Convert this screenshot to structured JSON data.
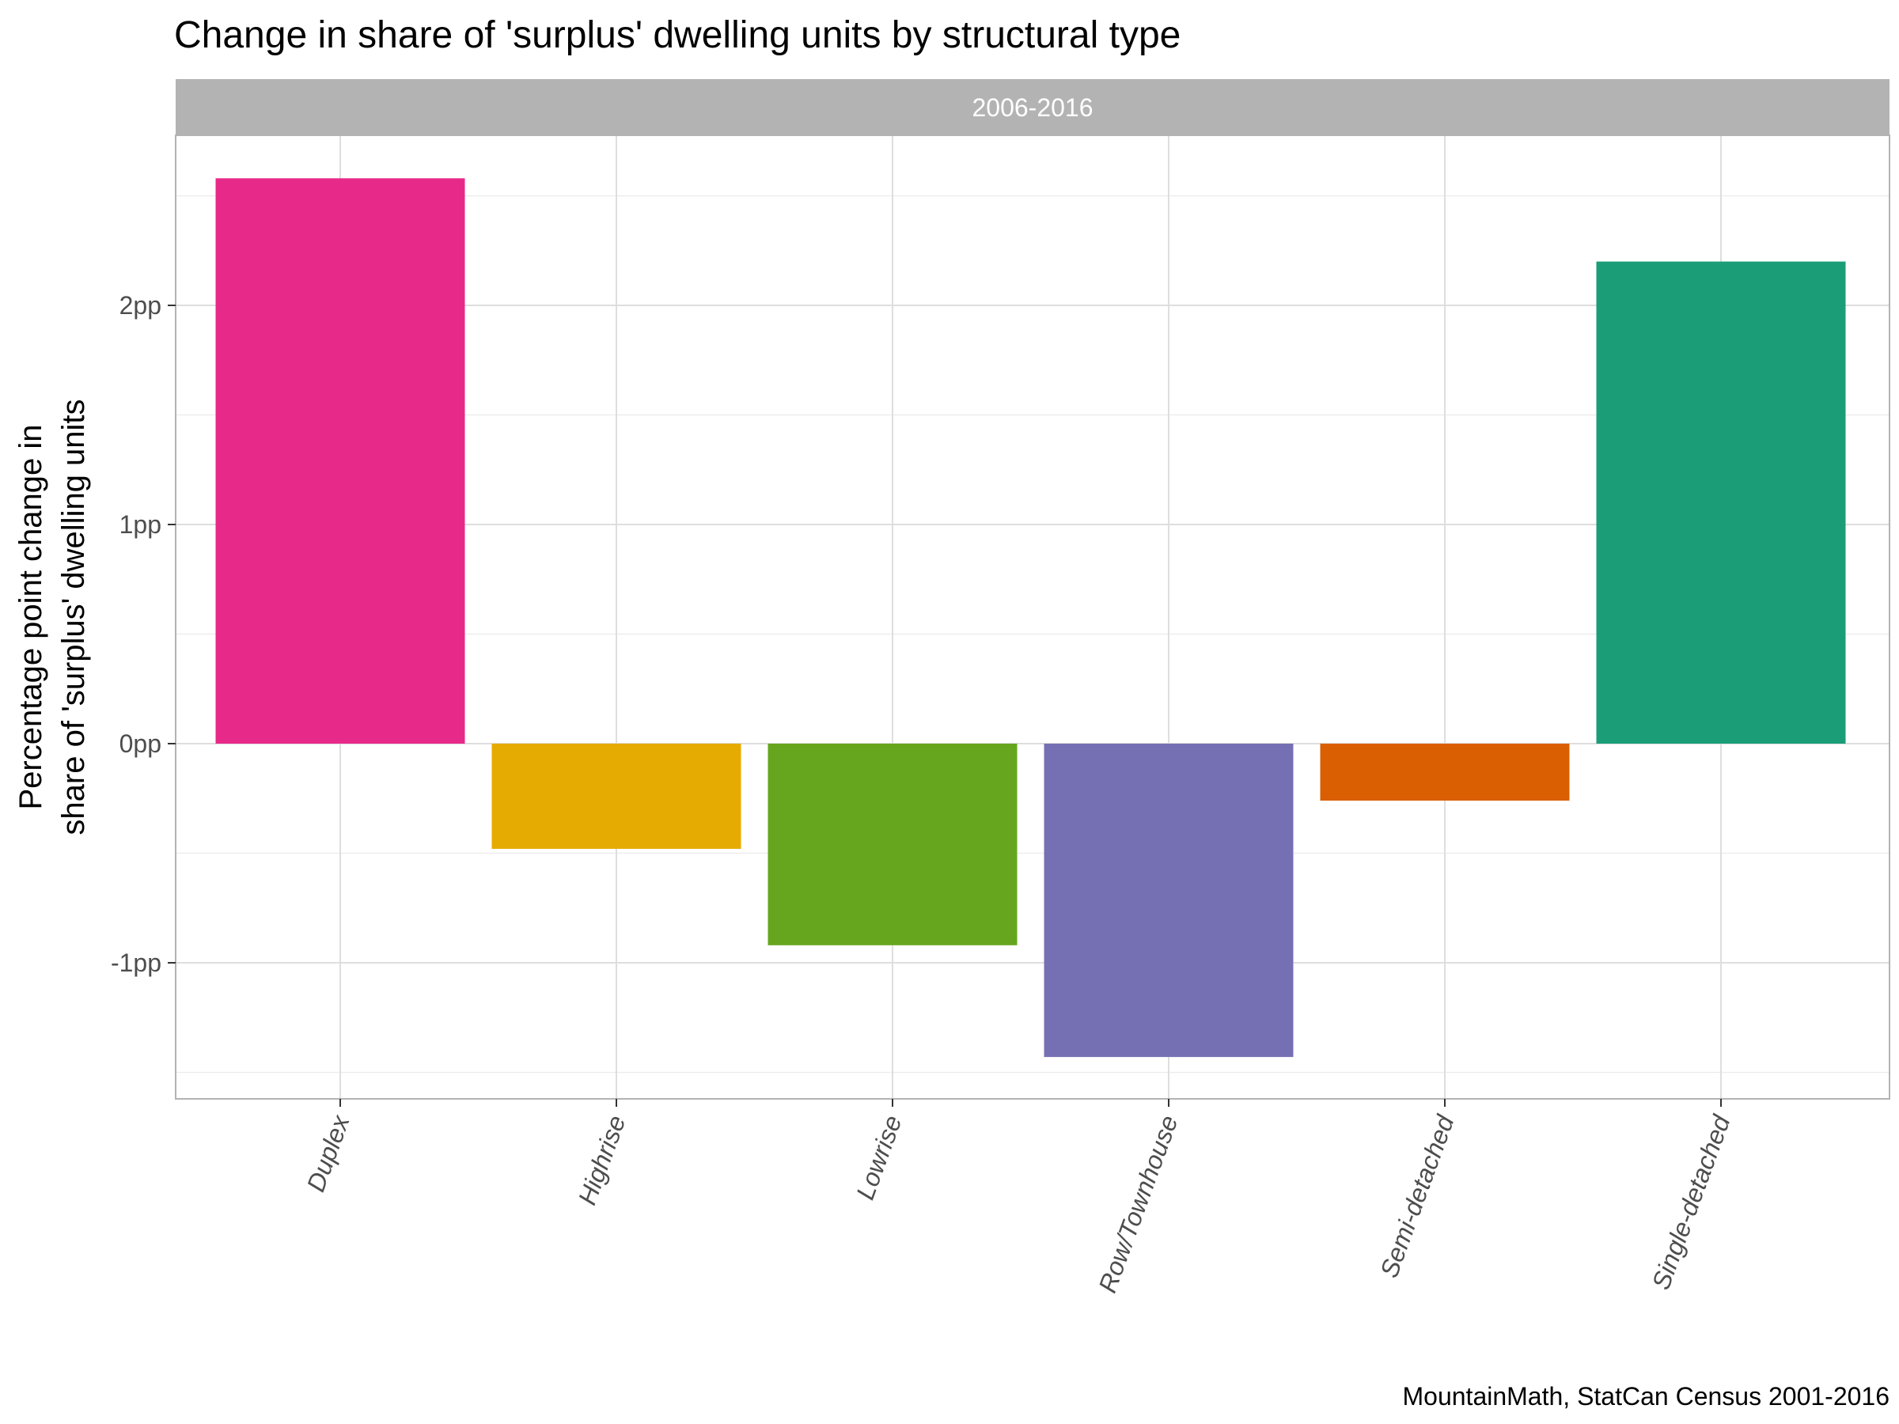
{
  "chart_data": {
    "type": "bar",
    "title": "Change in share of 'surplus' dwelling units by structural type",
    "facet_label": "2006-2016",
    "categories": [
      "Duplex",
      "Highrise",
      "Lowrise",
      "Row/Townhouse",
      "Semi-detached",
      "Single-detached"
    ],
    "values": [
      2.58,
      -0.48,
      -0.92,
      -1.43,
      -0.26,
      2.2
    ],
    "colors": [
      "#E7298A",
      "#E6AB02",
      "#66A61E",
      "#7570B3",
      "#D95F02",
      "#1B9E77"
    ],
    "ylabel_lines": [
      "Percentage point change in",
      "share of 'surplus' dwelling units"
    ],
    "ylim": [
      -1.6,
      2.8
    ],
    "yticks": [
      -1,
      0,
      1,
      2
    ],
    "ytick_labels": [
      "-1pp",
      "0pp",
      "1pp",
      "2pp"
    ],
    "grid": true,
    "caption": "MountainMath, StatCan Census 2001-2016"
  }
}
